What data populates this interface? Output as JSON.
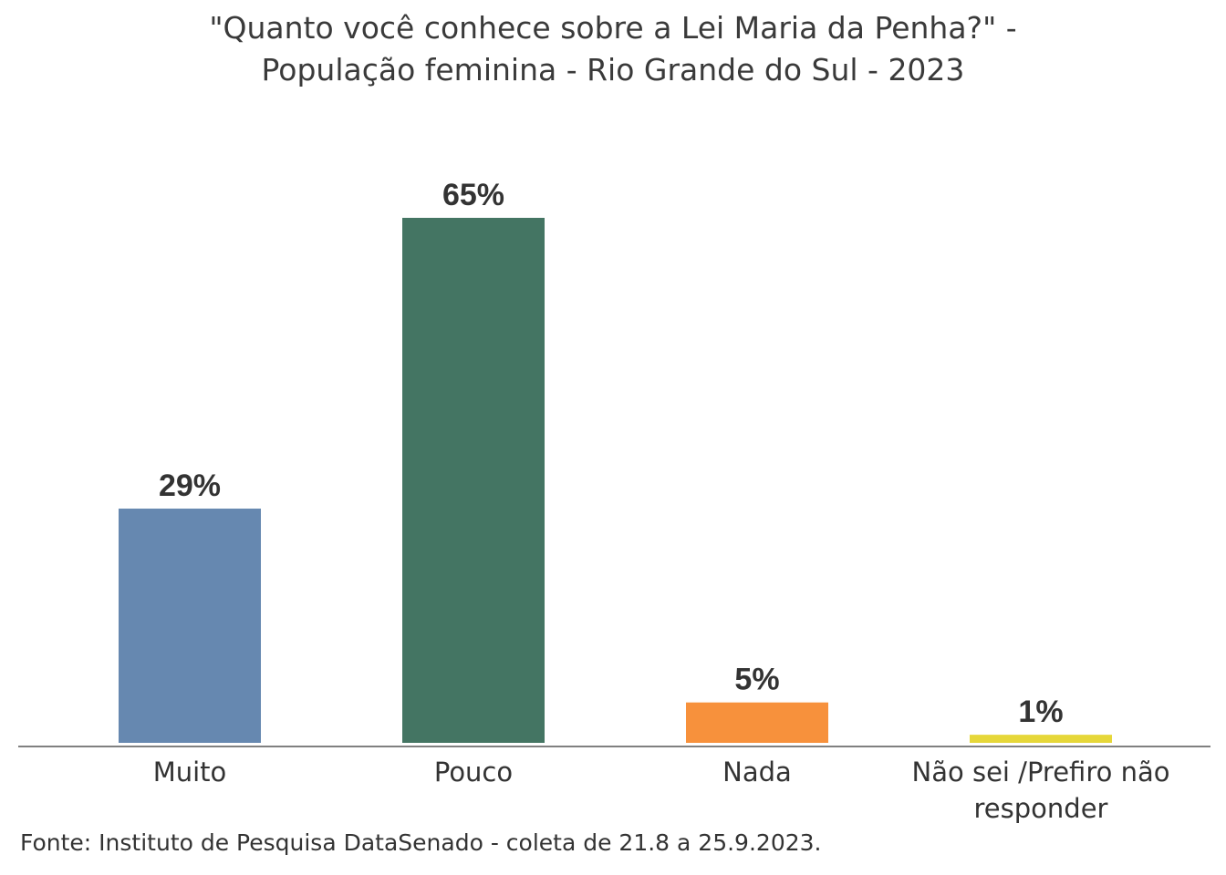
{
  "chart_data": {
    "type": "bar",
    "title_lines": [
      "\"Quanto você conhece sobre a Lei Maria da Penha?\" -",
      "População feminina - Rio Grande do Sul - 2023"
    ],
    "categories": [
      [
        "Muito"
      ],
      [
        "Pouco"
      ],
      [
        "Nada"
      ],
      [
        "Não sei /Prefiro não",
        "responder"
      ]
    ],
    "values": [
      29,
      65,
      5,
      1
    ],
    "value_labels": [
      "29%",
      "65%",
      "5%",
      "1%"
    ],
    "colors": [
      "#6688b0",
      "#447563",
      "#f7913c",
      "#e6d739"
    ],
    "axis_color": "#808080",
    "ylim": [
      0,
      65
    ],
    "grid": false,
    "source": "Fonte: Instituto de Pesquisa DataSenado - coleta de 21.8 a 25.9.2023."
  }
}
